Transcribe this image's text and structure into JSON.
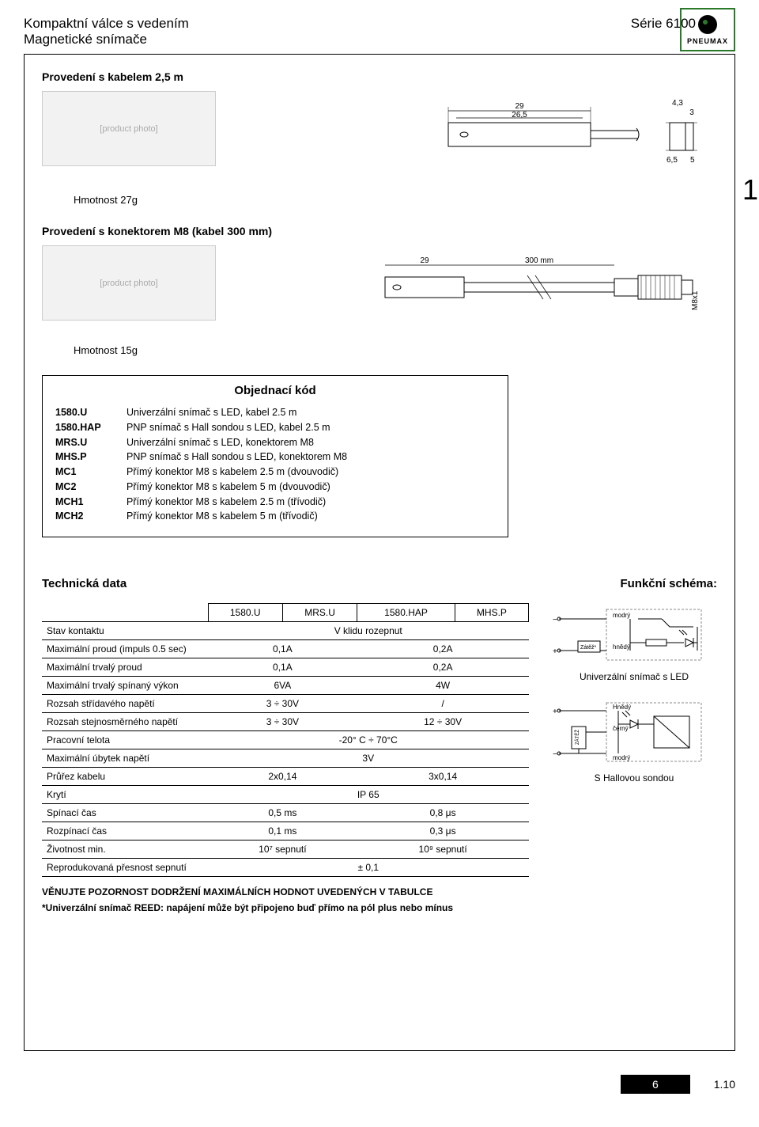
{
  "header": {
    "title1": "Kompaktní válce s vedením",
    "title2": "Magnetické snímače",
    "series": "Série 6100",
    "logo_text": "PNEUMAX"
  },
  "side_number": "1",
  "section1": {
    "title": "Provedení s kabelem 2,5 m",
    "weight": "Hmotnost 27g",
    "dims": {
      "w1": "29",
      "w2": "26,5",
      "h1": "4,3",
      "h2": "3",
      "h3": "6,5",
      "h4": "5"
    }
  },
  "section2": {
    "title": "Provedení s konektorem M8 (kabel 300 mm)",
    "weight": "Hmotnost 15g",
    "dims": {
      "w1": "29",
      "w2": "300 mm",
      "thread": "M8x1"
    }
  },
  "order": {
    "title": "Objednací kód",
    "rows": [
      {
        "code": "1580.U",
        "desc": "Univerzální snímač s LED, kabel 2.5 m"
      },
      {
        "code": "1580.HAP",
        "desc": "PNP snímač s Hall sondou s LED, kabel 2.5 m"
      },
      {
        "code": "MRS.U",
        "desc": "Univerzální snímač s LED, konektorem M8"
      },
      {
        "code": "MHS.P",
        "desc": "PNP snímač s Hall sondou s LED, konektorem M8"
      },
      {
        "code": "MC1",
        "desc": "Přímý konektor M8 s kabelem 2.5 m (dvouvodič)"
      },
      {
        "code": "MC2",
        "desc": "Přímý konektor M8 s kabelem 5 m (dvouvodič)"
      },
      {
        "code": "MCH1",
        "desc": "Přímý konektor M8 s kabelem 2.5 m (třívodič)"
      },
      {
        "code": "MCH2",
        "desc": "Přímý konektor M8 s kabelem 5 m (třívodič)"
      }
    ]
  },
  "tech": {
    "title": "Technická data",
    "func_title": "Funkční schéma:",
    "cols": [
      "1580.U",
      "MRS.U",
      "1580.HAP",
      "MHS.P"
    ],
    "rows": [
      {
        "label": "Stav kontaktu",
        "span": "V klidu rozepnut"
      },
      {
        "label": "Maximální proud (impuls 0.5 sec)",
        "l": "0,1A",
        "r": "0,2A"
      },
      {
        "label": "Maximální trvalý proud",
        "l": "0,1A",
        "r": "0,2A"
      },
      {
        "label": "Maximální trvalý spínaný výkon",
        "l": "6VA",
        "r": "4W"
      },
      {
        "label": "Rozsah střídavého napětí",
        "l": "3 ÷ 30V",
        "r": "/"
      },
      {
        "label": "Rozsah stejnosměrného napětí",
        "l": "3 ÷ 30V",
        "r": "12 ÷ 30V"
      },
      {
        "label": "Pracovní telota",
        "span": "-20° C ÷ 70°C"
      },
      {
        "label": "Maximální úbytek napětí",
        "span": "3V"
      },
      {
        "label": "Průřez kabelu",
        "l": "2x0,14",
        "r": "3x0,14"
      },
      {
        "label": "Krytí",
        "span": "IP 65"
      },
      {
        "label": "Spínací čas",
        "l": "0,5 ms",
        "r": "0,8 μs"
      },
      {
        "label": "Rozpínací čas",
        "l": "0,1 ms",
        "r": "0,3 μs"
      },
      {
        "label": "Životnost min.",
        "l": "10⁷ sepnutí",
        "r": "10⁹ sepnutí"
      },
      {
        "label": "Reprodukovaná přesnost sepnutí",
        "span": "± 0,1"
      }
    ],
    "schem1_caption": "Univerzální snímač s LED",
    "schem2_caption": "S Hallovou sondou",
    "schem_labels": {
      "blue": "modrý",
      "brown": "hnědý",
      "brown2": "Hnědý",
      "black": "černý",
      "load": "Zátěž*",
      "load2": "ZÁTĚŽ"
    }
  },
  "warnings": {
    "line1": "VĚNUJTE POZORNOST DODRŽENÍ MAXIMÁLNÍCH HODNOT UVEDENÝCH V TABULCE",
    "line2": "*Univerzální snímač REED: napájení může být připojeno buď přímo na pól plus nebo mínus"
  },
  "footer": {
    "page": "6",
    "rev": "1.10"
  },
  "colors": {
    "brand_green": "#2a7a2a",
    "border": "#000000"
  }
}
